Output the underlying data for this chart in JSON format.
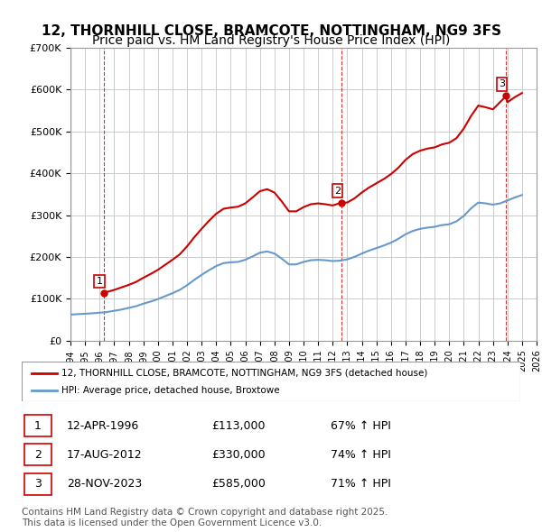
{
  "title": "12, THORNHILL CLOSE, BRAMCOTE, NOTTINGHAM, NG9 3FS",
  "subtitle": "Price paid vs. HM Land Registry's House Price Index (HPI)",
  "title_fontsize": 11,
  "subtitle_fontsize": 10,
  "background_color": "#ffffff",
  "plot_bg_color": "#ffffff",
  "grid_color": "#cccccc",
  "hatch_color": "#dddddd",
  "sale_dates": [
    1996.28,
    2012.63,
    2023.91
  ],
  "sale_prices": [
    113000,
    330000,
    585000
  ],
  "sale_labels": [
    "1",
    "2",
    "3"
  ],
  "sale_color": "#cc0000",
  "hpi_years": [
    1994,
    1994.5,
    1995,
    1995.5,
    1996,
    1996.5,
    1997,
    1997.5,
    1998,
    1998.5,
    1999,
    1999.5,
    2000,
    2000.5,
    2001,
    2001.5,
    2002,
    2002.5,
    2003,
    2003.5,
    2004,
    2004.5,
    2005,
    2005.5,
    2006,
    2006.5,
    2007,
    2007.5,
    2008,
    2008.5,
    2009,
    2009.5,
    2010,
    2010.5,
    2011,
    2011.5,
    2012,
    2012.5,
    2013,
    2013.5,
    2014,
    2014.5,
    2015,
    2015.5,
    2016,
    2016.5,
    2017,
    2017.5,
    2018,
    2018.5,
    2019,
    2019.5,
    2020,
    2020.5,
    2021,
    2021.5,
    2022,
    2022.5,
    2023,
    2023.5,
    2024,
    2024.5,
    2025
  ],
  "hpi_values": [
    62000,
    63000,
    64000,
    65000,
    66500,
    68000,
    71000,
    74000,
    78000,
    82000,
    88000,
    93000,
    99000,
    106000,
    113000,
    121000,
    132000,
    145000,
    157000,
    168000,
    178000,
    185000,
    187000,
    188000,
    193000,
    201000,
    210000,
    213000,
    208000,
    196000,
    182000,
    182000,
    188000,
    192000,
    193000,
    192000,
    190000,
    191000,
    194000,
    200000,
    208000,
    215000,
    221000,
    227000,
    234000,
    243000,
    254000,
    262000,
    267000,
    270000,
    272000,
    276000,
    278000,
    285000,
    298000,
    316000,
    330000,
    328000,
    325000,
    328000,
    335000,
    342000,
    348000
  ],
  "hpi_color": "#6699cc",
  "property_years": [
    1994,
    1994.5,
    1995,
    1995.5,
    1996,
    1996.28,
    1996.5,
    1997,
    1997.5,
    1998,
    1998.5,
    1999,
    1999.5,
    2000,
    2000.5,
    2001,
    2001.5,
    2002,
    2002.5,
    2003,
    2003.5,
    2004,
    2004.5,
    2005,
    2005.5,
    2006,
    2006.5,
    2007,
    2007.5,
    2008,
    2008.5,
    2009,
    2009.5,
    2010,
    2010.5,
    2011,
    2011.5,
    2012,
    2012.63,
    2013,
    2013.5,
    2014,
    2014.5,
    2015,
    2015.5,
    2016,
    2016.5,
    2017,
    2017.5,
    2018,
    2018.5,
    2019,
    2019.5,
    2020,
    2020.5,
    2021,
    2021.5,
    2022,
    2022.5,
    2023,
    2023.91,
    2024,
    2024.5,
    2025
  ],
  "property_values": [
    null,
    null,
    null,
    null,
    null,
    113000,
    116000,
    121000,
    127000,
    133000,
    140000,
    150000,
    159000,
    169000,
    181000,
    193000,
    206000,
    225000,
    247000,
    267000,
    286000,
    303000,
    315000,
    318000,
    320000,
    328000,
    342000,
    357000,
    362000,
    354000,
    333000,
    309000,
    309000,
    319000,
    326000,
    328000,
    326000,
    323000,
    330000,
    330000,
    340000,
    354000,
    366000,
    376000,
    386000,
    398000,
    413000,
    432000,
    446000,
    454000,
    459000,
    462000,
    469000,
    473000,
    484000,
    507000,
    537000,
    562000,
    558000,
    553000,
    585000,
    570000,
    582000,
    592000
  ],
  "property_color": "#cc0000",
  "xmin": 1994,
  "xmax": 2026,
  "ymin": 0,
  "ymax": 700000,
  "yticks": [
    0,
    100000,
    200000,
    300000,
    400000,
    500000,
    600000,
    700000
  ],
  "ytick_labels": [
    "£0",
    "£100K",
    "£200K",
    "£300K",
    "£400K",
    "£500K",
    "£600K",
    "£700K"
  ],
  "xtick_years": [
    1994,
    1995,
    1996,
    1997,
    1998,
    1999,
    2000,
    2001,
    2002,
    2003,
    2004,
    2005,
    2006,
    2007,
    2008,
    2009,
    2010,
    2011,
    2012,
    2013,
    2014,
    2015,
    2016,
    2017,
    2018,
    2019,
    2020,
    2021,
    2022,
    2023,
    2024,
    2025,
    2026
  ],
  "vline_dates": [
    1996.28,
    2012.63,
    2023.91
  ],
  "vline_color": "#cc0000",
  "legend_entries": [
    {
      "label": "12, THORNHILL CLOSE, BRAMCOTE, NOTTINGHAM, NG9 3FS (detached house)",
      "color": "#cc0000"
    },
    {
      "label": "HPI: Average price, detached house, Broxtowe",
      "color": "#6699cc"
    }
  ],
  "table_rows": [
    {
      "num": "1",
      "date": "12-APR-1996",
      "price": "£113,000",
      "hpi": "67% ↑ HPI"
    },
    {
      "num": "2",
      "date": "17-AUG-2012",
      "price": "£330,000",
      "hpi": "74% ↑ HPI"
    },
    {
      "num": "3",
      "date": "28-NOV-2023",
      "price": "£585,000",
      "hpi": "71% ↑ HPI"
    }
  ],
  "footnote": "Contains HM Land Registry data © Crown copyright and database right 2025.\nThis data is licensed under the Open Government Licence v3.0.",
  "footnote_fontsize": 7.5
}
